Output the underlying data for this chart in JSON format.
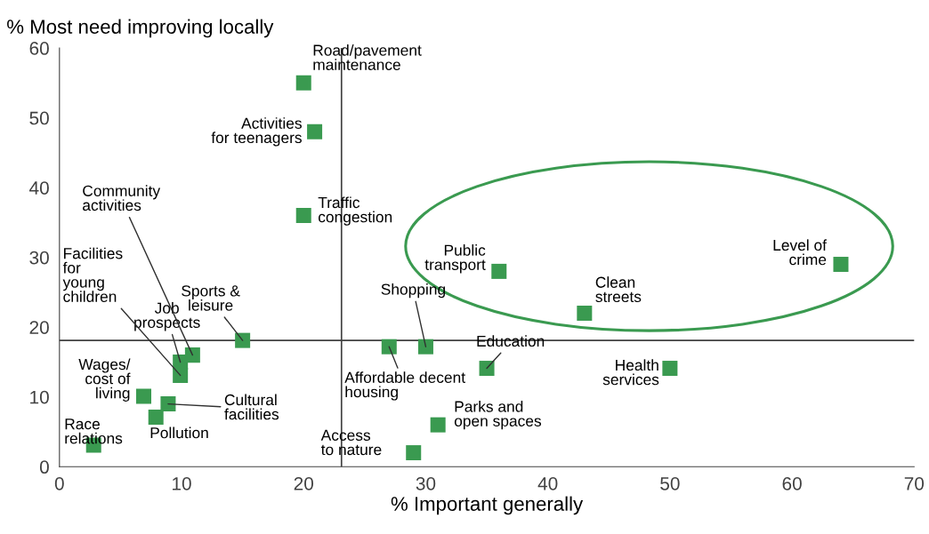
{
  "chart_data": {
    "type": "scatter",
    "xlabel": "% Important generally",
    "ylabel": "% Most need improving locally",
    "xlim": [
      0,
      70
    ],
    "xticks": [
      0,
      10,
      20,
      30,
      40,
      50,
      60,
      70
    ],
    "ylim": [
      0,
      60
    ],
    "yticks": [
      0,
      10,
      20,
      30,
      40,
      50,
      60
    ],
    "grid": false,
    "marker": "square",
    "series": [
      {
        "color": "#3a9a50",
        "x": [
          20,
          20.9,
          20,
          36,
          64,
          43,
          15,
          27,
          30,
          35,
          50,
          9.9,
          10.9,
          9.9,
          6.9,
          8.9,
          7.9,
          2.8,
          31,
          29
        ],
        "values": [
          55,
          48,
          36,
          28,
          29,
          22,
          18.1,
          17.2,
          17.2,
          14.1,
          14.1,
          15,
          16,
          13.1,
          10.1,
          9,
          7.1,
          3.1,
          6,
          2
        ]
      }
    ],
    "ref_lines": [
      {
        "axis": "x",
        "value": 23.1,
        "color": "#404040"
      },
      {
        "axis": "y",
        "value": 18.1,
        "color": "#404040"
      }
    ],
    "annotations": [
      {
        "text": "Road/pavement\nmaintenance",
        "x": 20,
        "y": 55
      },
      {
        "text": "Activities\nfor teenagers",
        "x": 20.9,
        "y": 48
      },
      {
        "text": "Traffic\ncongestion",
        "x": 20,
        "y": 36
      },
      {
        "text": "Public\ntransport",
        "x": 36,
        "y": 28
      },
      {
        "text": "Level of\ncrime",
        "x": 64,
        "y": 29
      },
      {
        "text": "Clean\nstreets",
        "x": 43,
        "y": 22
      },
      {
        "text": "Sports &\nleisure",
        "x": 15,
        "y": 18.1
      },
      {
        "text": "Affordable decent\nhousing",
        "x": 27,
        "y": 17.2
      },
      {
        "text": "Shopping",
        "x": 30,
        "y": 17.2
      },
      {
        "text": "Education",
        "x": 35,
        "y": 14.1
      },
      {
        "text": "Health\nservices",
        "x": 50,
        "y": 14.1
      },
      {
        "text": "Job\nprospects",
        "x": 9.9,
        "y": 15
      },
      {
        "text": "Community\nactivities",
        "x": 10.9,
        "y": 16
      },
      {
        "text": "Facilities\nfor\nyoung\nchildren",
        "x": 9.9,
        "y": 13.1
      },
      {
        "text": "Wages/\ncost of\nliving",
        "x": 6.9,
        "y": 10.1
      },
      {
        "text": "Cultural\nfacilities",
        "x": 8.9,
        "y": 9
      },
      {
        "text": "Pollution",
        "x": 7.9,
        "y": 7.1
      },
      {
        "text": "Race\nrelations",
        "x": 2.8,
        "y": 3.1
      },
      {
        "text": "Parks and\nopen spaces",
        "x": 31,
        "y": 6
      },
      {
        "text": "Access\nto nature",
        "x": 29,
        "y": 2
      }
    ]
  }
}
